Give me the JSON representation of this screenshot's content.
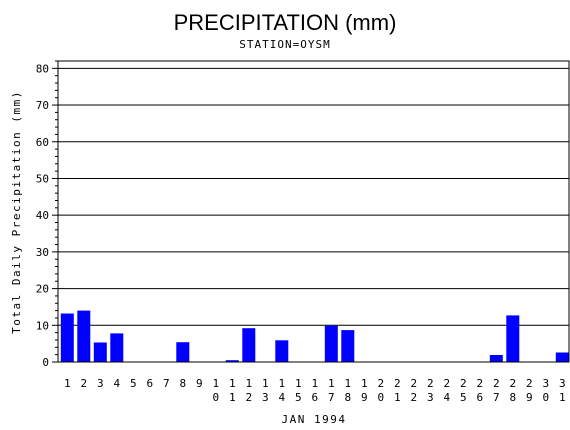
{
  "chart_data": {
    "type": "bar",
    "title": "PRECIPITATION (mm)",
    "subtitle": "STATION=OYSM",
    "xlabel": "JAN 1994",
    "ylabel": "Total Daily Precipitation (mm)",
    "ylim": [
      0,
      82
    ],
    "yticks": [
      0,
      10,
      20,
      30,
      40,
      50,
      60,
      70,
      80
    ],
    "grid": true,
    "categories": [
      "1",
      "2",
      "3",
      "4",
      "5",
      "6",
      "7",
      "8",
      "9",
      "10",
      "11",
      "12",
      "13",
      "14",
      "15",
      "16",
      "17",
      "18",
      "19",
      "20",
      "21",
      "22",
      "23",
      "24",
      "25",
      "26",
      "27",
      "28",
      "29",
      "30",
      "31"
    ],
    "values": [
      13.2,
      14.0,
      5.3,
      7.8,
      0,
      0,
      0,
      5.4,
      0,
      0,
      0.5,
      9.2,
      0,
      5.9,
      0,
      0,
      9.9,
      8.7,
      0,
      0,
      0,
      0,
      0,
      0,
      0,
      0,
      1.9,
      12.7,
      0,
      0,
      2.6
    ],
    "bar_color": "#0000ff"
  }
}
